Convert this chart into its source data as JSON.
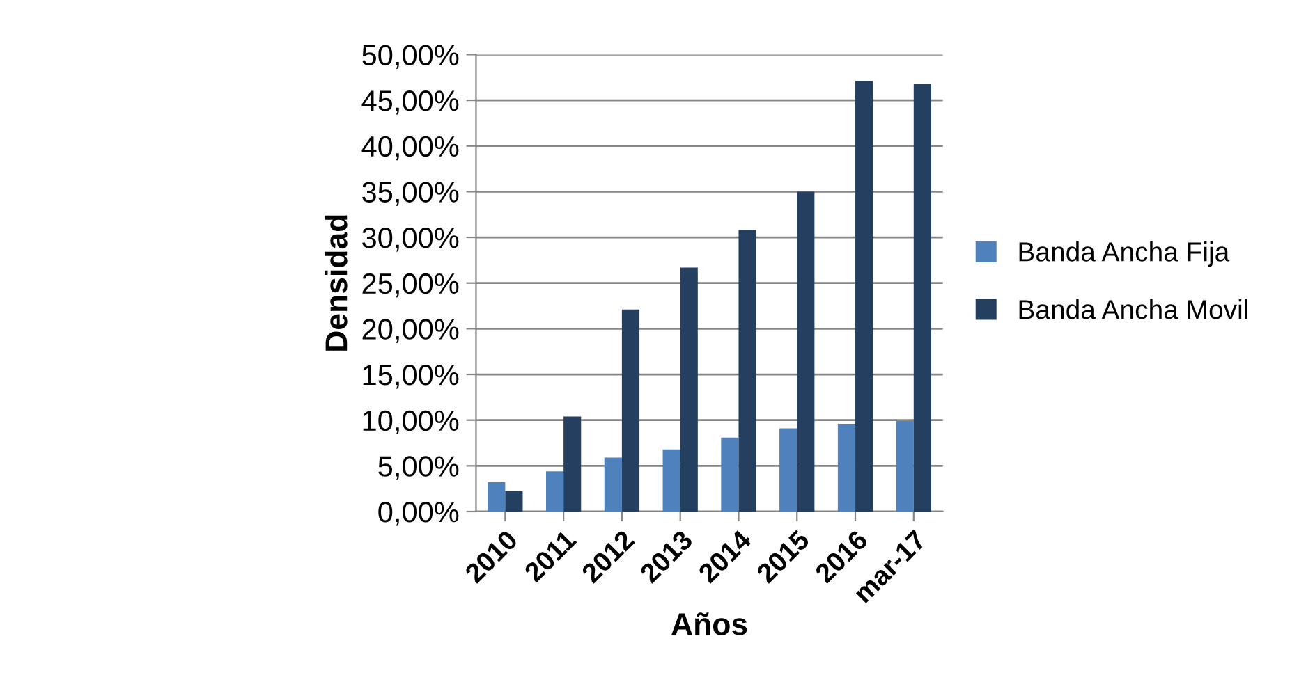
{
  "chart_data": {
    "type": "bar",
    "xlabel": "Años",
    "ylabel": "Densidad",
    "categories": [
      "2010",
      "2011",
      "2012",
      "2013",
      "2014",
      "2015",
      "2016",
      "mar-17"
    ],
    "series": [
      {
        "name": "Banda Ancha Fija",
        "color": "#4f81bd",
        "values": [
          3.2,
          4.4,
          5.9,
          6.8,
          8.1,
          9.1,
          9.6,
          9.9
        ]
      },
      {
        "name": "Banda Ancha Movil",
        "color": "#243f60",
        "values": [
          2.2,
          10.4,
          22.1,
          26.7,
          30.8,
          35.0,
          47.1,
          46.8
        ]
      }
    ],
    "ylim": [
      0,
      50
    ],
    "yticks": [
      {
        "value": 0,
        "label": "0,00%"
      },
      {
        "value": 5,
        "label": "5,00%"
      },
      {
        "value": 10,
        "label": "10,00%"
      },
      {
        "value": 15,
        "label": "15,00%"
      },
      {
        "value": 20,
        "label": "20,00%"
      },
      {
        "value": 25,
        "label": "25,00%"
      },
      {
        "value": 30,
        "label": "30,00%"
      },
      {
        "value": 35,
        "label": "35,00%"
      },
      {
        "value": 40,
        "label": "40,00%"
      },
      {
        "value": 45,
        "label": "45,00%"
      },
      {
        "value": 50,
        "label": "50,00%"
      }
    ],
    "grid": "y",
    "legend": "right"
  }
}
